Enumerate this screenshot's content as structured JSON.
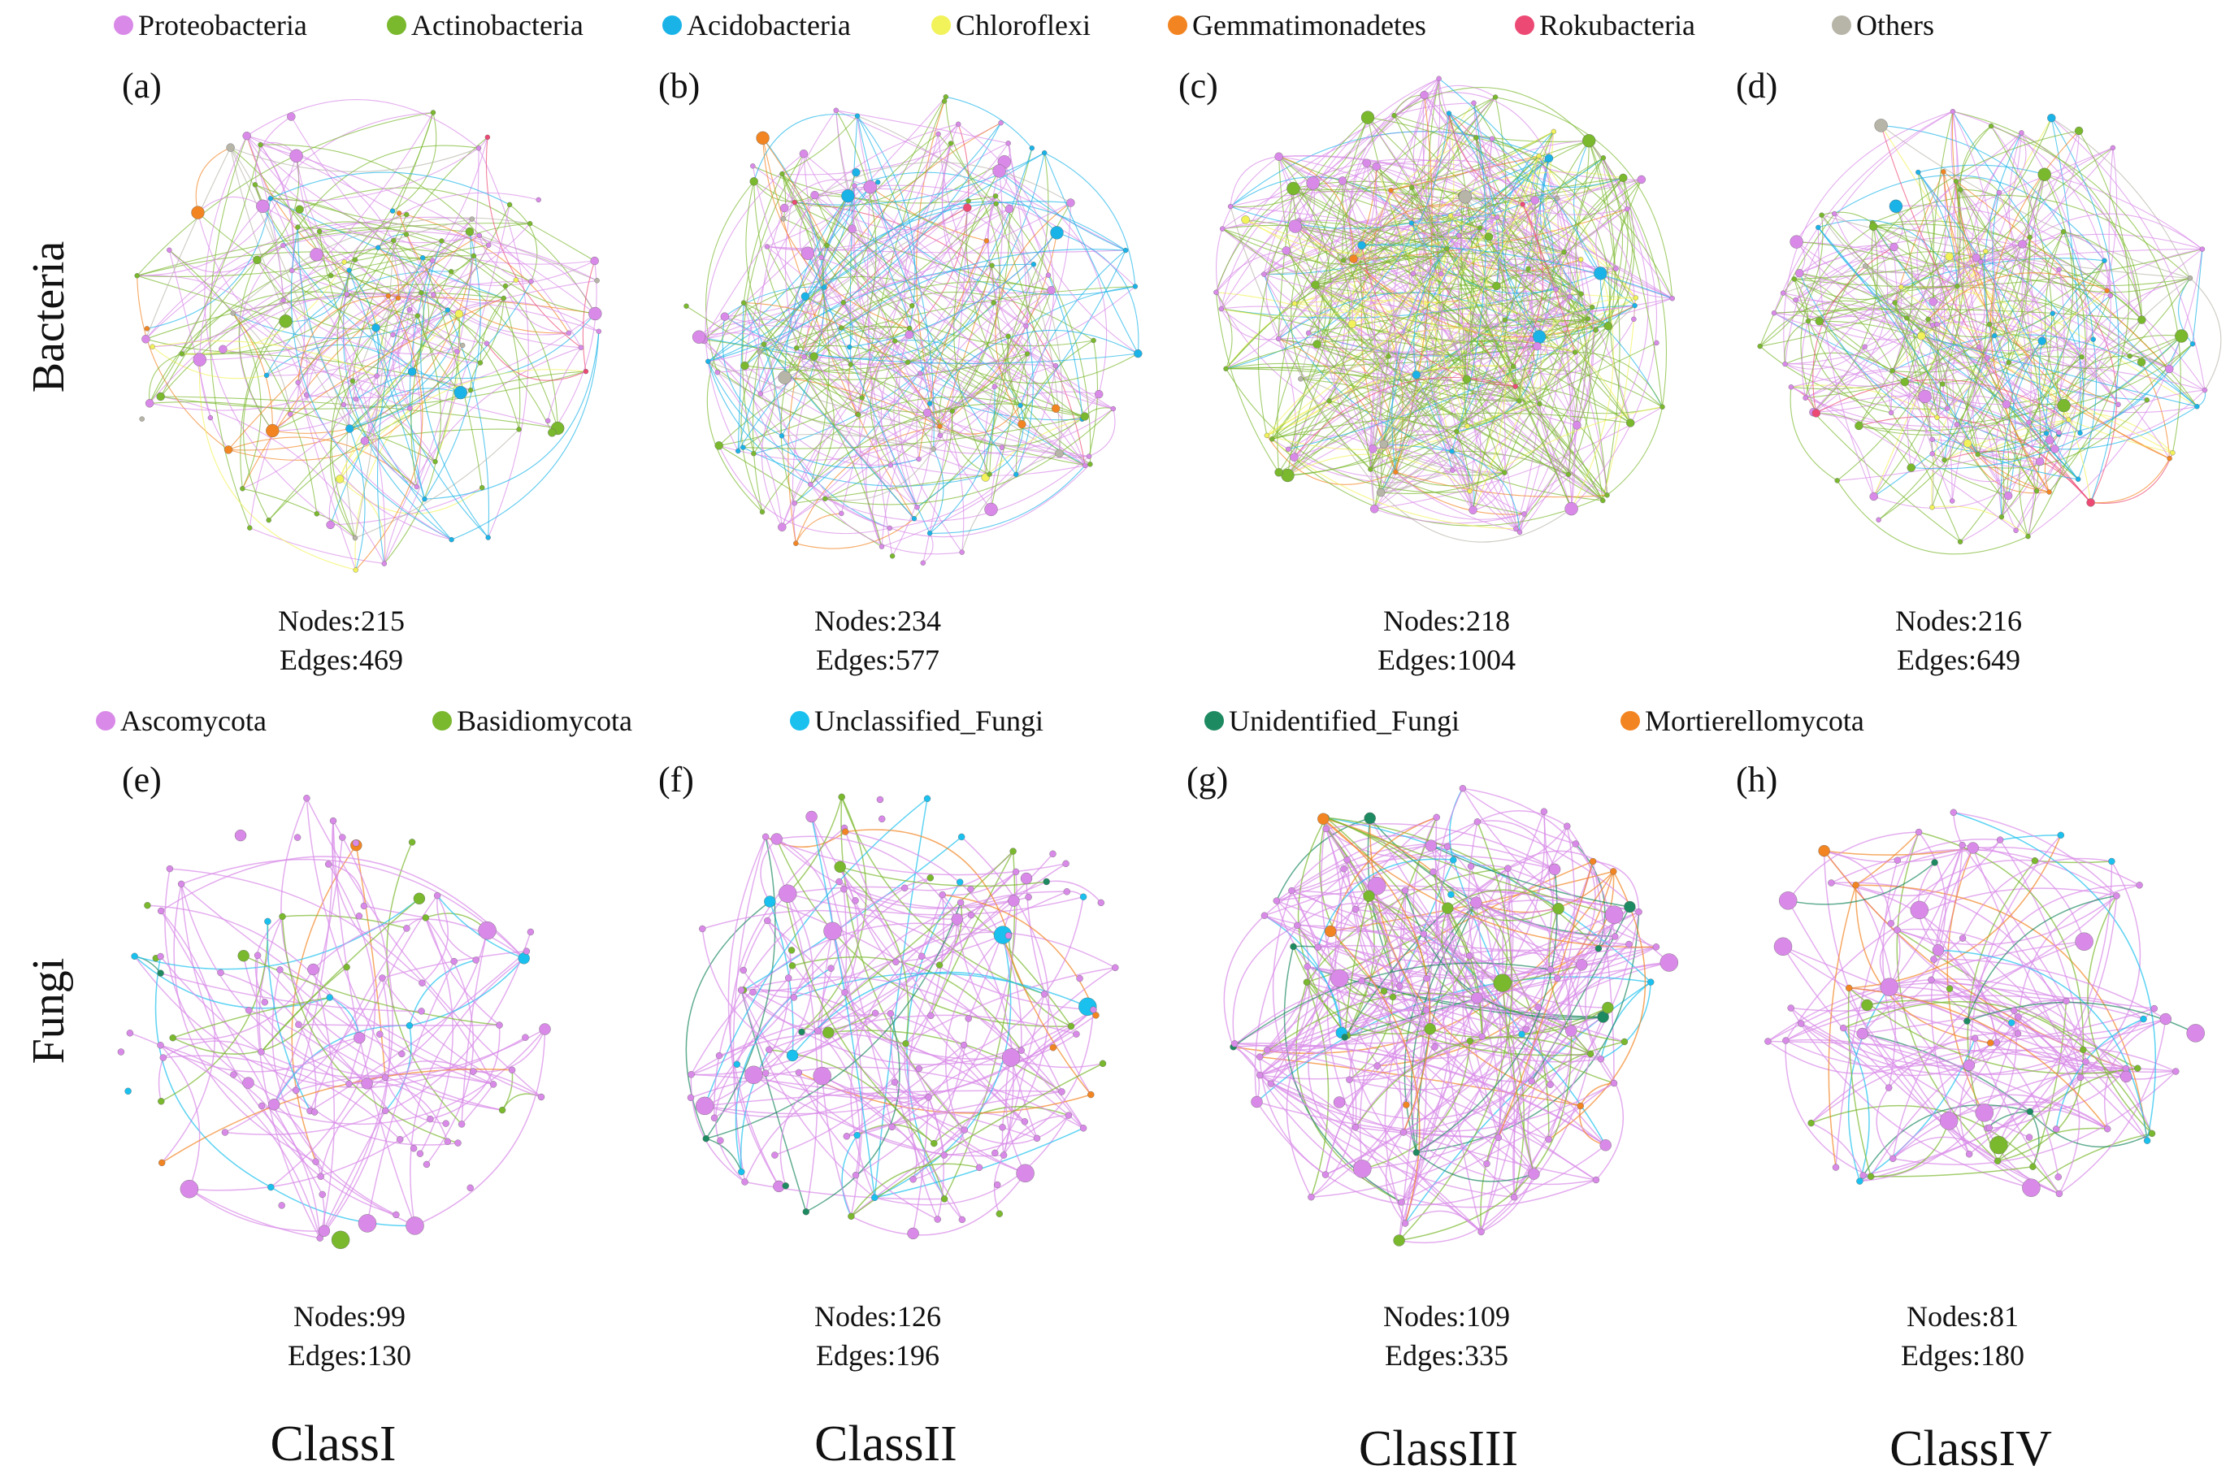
{
  "row_labels": {
    "bacteria": "Bacteria",
    "fungi": "Fungi"
  },
  "class_labels": [
    "ClassI",
    "ClassII",
    "ClassIII",
    "ClassIV"
  ],
  "bacteria_legend": [
    {
      "name": "Proteobacteria",
      "color": "#d98ae8"
    },
    {
      "name": "Actinobacteria",
      "color": "#7ab82e"
    },
    {
      "name": "Acidobacteria",
      "color": "#1ab3e8"
    },
    {
      "name": "Chloroflexi",
      "color": "#f2f25a"
    },
    {
      "name": "Gemmatimonadetes",
      "color": "#f28522"
    },
    {
      "name": "Rokubacteria",
      "color": "#ec4a74"
    },
    {
      "name": "Others",
      "color": "#b7b4a8"
    }
  ],
  "fungi_legend": [
    {
      "name": "Ascomycota",
      "color": "#d98ae8"
    },
    {
      "name": "Basidiomycota",
      "color": "#7ab82e"
    },
    {
      "name": "Unclassified_Fungi",
      "color": "#1ac0ee"
    },
    {
      "name": "Unidentified_Fungi",
      "color": "#1e8a62"
    },
    {
      "name": "Mortierellomycota",
      "color": "#f28522"
    }
  ],
  "panels": [
    {
      "label": "(a)",
      "nodes_text": "Nodes:215",
      "edges_text": "Edges:469",
      "nodes": 215,
      "edges": 469
    },
    {
      "label": "(b)",
      "nodes_text": "Nodes:234",
      "edges_text": "Edges:577",
      "nodes": 234,
      "edges": 577
    },
    {
      "label": "(c)",
      "nodes_text": "Nodes:218",
      "edges_text": "Edges:1004",
      "nodes": 218,
      "edges": 1004
    },
    {
      "label": "(d)",
      "nodes_text": "Nodes:216",
      "edges_text": "Edges:649",
      "nodes": 216,
      "edges": 649
    },
    {
      "label": "(e)",
      "nodes_text": "Nodes:99",
      "edges_text": "Edges:130",
      "nodes": 99,
      "edges": 130
    },
    {
      "label": "(f)",
      "nodes_text": "Nodes:126",
      "edges_text": "Edges:196",
      "nodes": 126,
      "edges": 196
    },
    {
      "label": "(g)",
      "nodes_text": "Nodes:109",
      "edges_text": "Edges:335",
      "nodes": 109,
      "edges": 335
    },
    {
      "label": "(h)",
      "nodes_text": "Nodes:81",
      "edges_text": "Edges:180",
      "nodes": 81,
      "edges": 180
    }
  ]
}
